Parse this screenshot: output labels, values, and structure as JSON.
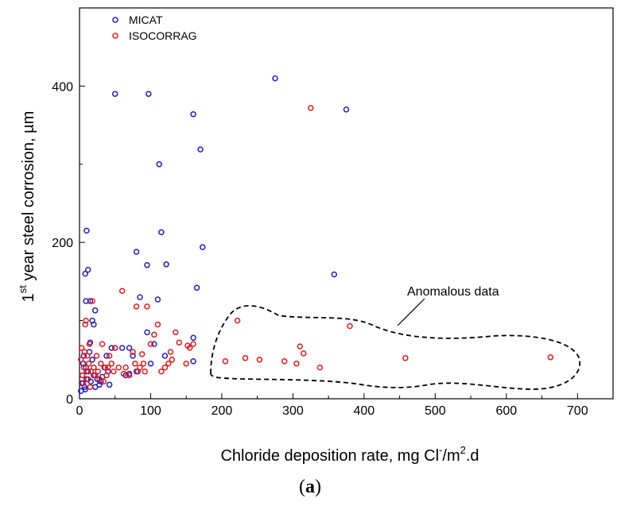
{
  "chart_data": {
    "type": "scatter",
    "xlim": [
      0,
      750
    ],
    "ylim": [
      0,
      500
    ],
    "x_ticks": [
      0,
      100,
      200,
      300,
      400,
      500,
      600,
      700
    ],
    "y_ticks": [
      0,
      200,
      400
    ],
    "xlabel": {
      "main": "Chloride deposition rate, mg Cl",
      "sup1": "-",
      "mid": "/m",
      "sup2": "2",
      "end": ".d"
    },
    "ylabel": {
      "pre": "1",
      "sup": "st",
      "main": " year steel corrosion, µm"
    },
    "panel_label": {
      "open": "(",
      "letter": "a",
      "close": ")"
    },
    "legend_placement": "top-left",
    "series": [
      {
        "name": "MICAT",
        "color": "#1f1fbf",
        "points": [
          [
            2,
            10
          ],
          [
            3,
            20
          ],
          [
            4,
            30
          ],
          [
            5,
            45
          ],
          [
            6,
            55
          ],
          [
            7,
            15
          ],
          [
            8,
            12
          ],
          [
            9,
            40
          ],
          [
            10,
            25
          ],
          [
            12,
            35
          ],
          [
            14,
            60
          ],
          [
            15,
            72
          ],
          [
            16,
            22
          ],
          [
            18,
            50
          ],
          [
            20,
            30
          ],
          [
            22,
            15
          ],
          [
            25,
            25
          ],
          [
            28,
            18
          ],
          [
            30,
            22
          ],
          [
            32,
            28
          ],
          [
            35,
            40
          ],
          [
            38,
            55
          ],
          [
            40,
            35
          ],
          [
            42,
            18
          ],
          [
            45,
            65
          ],
          [
            50,
            65
          ],
          [
            60,
            65
          ],
          [
            65,
            30
          ],
          [
            70,
            65
          ],
          [
            70,
            32
          ],
          [
            75,
            55
          ],
          [
            80,
            35
          ],
          [
            85,
            130
          ],
          [
            95,
            85
          ],
          [
            100,
            45
          ],
          [
            105,
            70
          ],
          [
            8,
            160
          ],
          [
            9,
            125
          ],
          [
            10,
            215
          ],
          [
            12,
            165
          ],
          [
            15,
            125
          ],
          [
            18,
            100
          ],
          [
            20,
            95
          ],
          [
            22,
            113
          ],
          [
            50,
            390
          ],
          [
            97,
            390
          ],
          [
            112,
            300
          ],
          [
            115,
            213
          ],
          [
            122,
            172
          ],
          [
            160,
            364
          ],
          [
            170,
            319
          ],
          [
            173,
            194
          ],
          [
            165,
            142
          ],
          [
            95,
            171
          ],
          [
            80,
            188
          ],
          [
            110,
            127
          ],
          [
            120,
            55
          ],
          [
            160,
            78
          ],
          [
            275,
            410
          ],
          [
            375,
            370
          ],
          [
            358,
            159
          ],
          [
            160,
            48
          ]
        ]
      },
      {
        "name": "ISOCORRAG",
        "color": "#e01b1b",
        "points": [
          [
            2,
            50
          ],
          [
            3,
            65
          ],
          [
            4,
            30
          ],
          [
            5,
            20
          ],
          [
            6,
            40
          ],
          [
            7,
            60
          ],
          [
            8,
            95
          ],
          [
            9,
            100
          ],
          [
            10,
            35
          ],
          [
            11,
            55
          ],
          [
            12,
            25
          ],
          [
            13,
            45
          ],
          [
            14,
            70
          ],
          [
            15,
            15
          ],
          [
            16,
            35
          ],
          [
            18,
            125
          ],
          [
            20,
            40
          ],
          [
            22,
            30
          ],
          [
            24,
            55
          ],
          [
            26,
            35
          ],
          [
            28,
            25
          ],
          [
            30,
            45
          ],
          [
            32,
            70
          ],
          [
            34,
            22
          ],
          [
            36,
            40
          ],
          [
            38,
            30
          ],
          [
            40,
            40
          ],
          [
            42,
            55
          ],
          [
            45,
            45
          ],
          [
            48,
            35
          ],
          [
            50,
            65
          ],
          [
            55,
            40
          ],
          [
            60,
            138
          ],
          [
            62,
            32
          ],
          [
            65,
            40
          ],
          [
            70,
            30
          ],
          [
            75,
            60
          ],
          [
            78,
            45
          ],
          [
            80,
            118
          ],
          [
            82,
            35
          ],
          [
            85,
            40
          ],
          [
            88,
            57
          ],
          [
            90,
            45
          ],
          [
            92,
            35
          ],
          [
            95,
            118
          ],
          [
            100,
            70
          ],
          [
            105,
            82
          ],
          [
            110,
            95
          ],
          [
            115,
            35
          ],
          [
            120,
            40
          ],
          [
            125,
            45
          ],
          [
            128,
            60
          ],
          [
            130,
            50
          ],
          [
            135,
            85
          ],
          [
            140,
            72
          ],
          [
            150,
            45
          ],
          [
            152,
            68
          ],
          [
            155,
            65
          ],
          [
            160,
            70
          ],
          [
            222,
            100
          ],
          [
            205,
            48
          ],
          [
            233,
            52
          ],
          [
            253,
            50
          ],
          [
            288,
            48
          ],
          [
            305,
            45
          ],
          [
            310,
            67
          ],
          [
            315,
            58
          ],
          [
            338,
            40
          ],
          [
            325,
            372
          ],
          [
            380,
            93
          ],
          [
            458,
            52
          ],
          [
            662,
            53
          ]
        ]
      }
    ],
    "annotations": [
      {
        "text": "Anomalous data"
      }
    ]
  }
}
